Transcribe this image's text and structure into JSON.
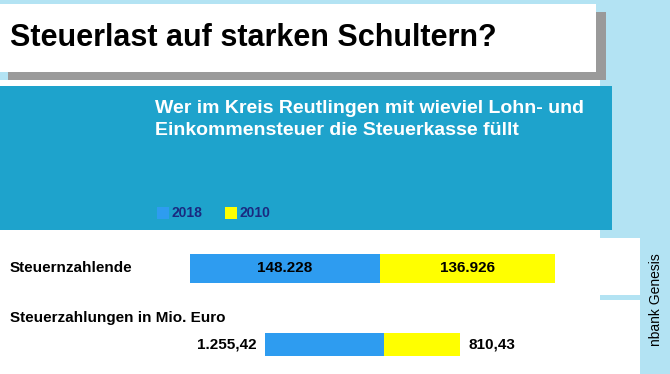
{
  "title": "Steuerlast auf starken Schultern?",
  "subtitle": "Wer im Kreis Reutlingen mit wieviel Lohn- und Einkommensteuer die Steuerkasse füllt",
  "source": "nbank Genesis",
  "chart_data": [
    {
      "type": "bar",
      "orientation": "horizontal",
      "stacked": true,
      "data_labels": true,
      "tick_labels": false,
      "categories": [
        "Steuernzahlende"
      ],
      "series": [
        {
          "name": "2018",
          "color": "#2e9cf0",
          "values": [
            148228
          ],
          "value_labels": [
            "148.228"
          ]
        },
        {
          "name": "2010",
          "color": "#ffff00",
          "values": [
            136926
          ],
          "value_labels": [
            "136.926"
          ]
        }
      ]
    },
    {
      "type": "bar",
      "orientation": "horizontal",
      "stacked": true,
      "data_labels": true,
      "tick_labels": false,
      "categories": [
        "Steuerzahlungen in Mio. Euro"
      ],
      "series": [
        {
          "name": "2018",
          "color": "#2e9cf0",
          "values": [
            1255.42
          ],
          "value_labels": [
            "1.255,42"
          ]
        },
        {
          "name": "2010",
          "color": "#ffff00",
          "values": [
            810.43
          ],
          "value_labels": [
            "810,43"
          ]
        }
      ]
    }
  ]
}
